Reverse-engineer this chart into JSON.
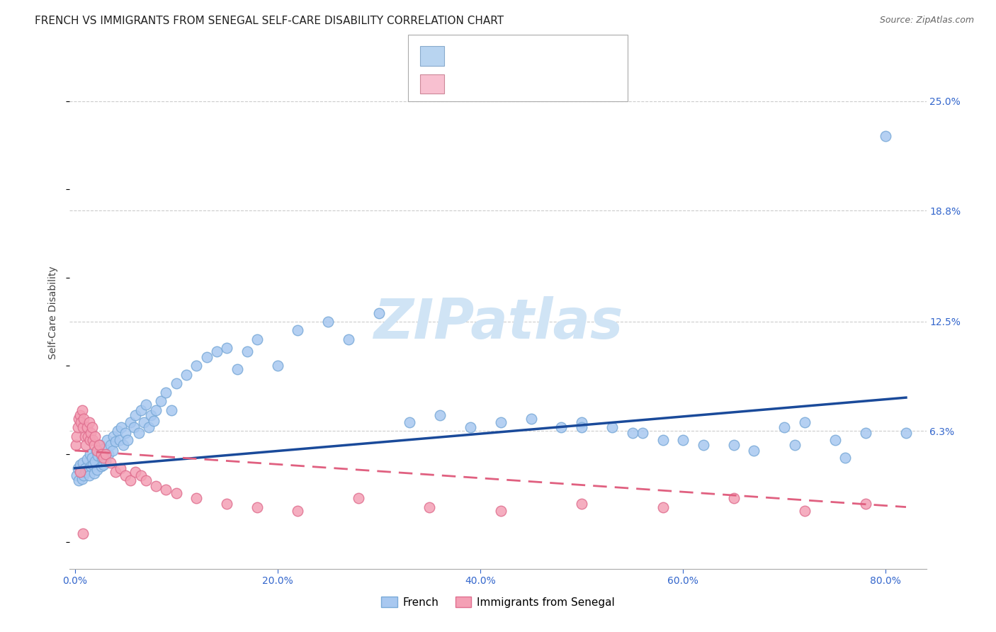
{
  "title": "FRENCH VS IMMIGRANTS FROM SENEGAL SELF-CARE DISABILITY CORRELATION CHART",
  "source": "Source: ZipAtlas.com",
  "ylabel_label": "Self-Care Disability",
  "x_tick_labels": [
    "0.0%",
    "20.0%",
    "40.0%",
    "60.0%",
    "80.0%"
  ],
  "x_tick_vals": [
    0.0,
    0.2,
    0.4,
    0.6,
    0.8
  ],
  "y_tick_labels": [
    "6.3%",
    "12.5%",
    "18.8%",
    "25.0%"
  ],
  "y_tick_vals": [
    0.063,
    0.125,
    0.188,
    0.25
  ],
  "xlim": [
    -0.005,
    0.84
  ],
  "ylim": [
    -0.015,
    0.275
  ],
  "french_color": "#A8C8F0",
  "senegal_color": "#F4A0B5",
  "french_edge": "#7AAAD8",
  "senegal_edge": "#E07090",
  "trendline_french_color": "#1A4A9A",
  "trendline_senegal_color": "#E06080",
  "watermark_color": "#D0E4F5",
  "legend_box_french": "#B8D4F0",
  "legend_box_senegal": "#F8C0D0",
  "background_color": "#FFFFFF",
  "grid_color": "#CCCCCC",
  "title_fontsize": 11,
  "axis_label_fontsize": 10,
  "tick_fontsize": 10,
  "legend_fontsize": 12,
  "french_x": [
    0.002,
    0.003,
    0.004,
    0.005,
    0.006,
    0.007,
    0.008,
    0.009,
    0.01,
    0.011,
    0.012,
    0.013,
    0.014,
    0.015,
    0.016,
    0.017,
    0.018,
    0.019,
    0.02,
    0.021,
    0.022,
    0.023,
    0.025,
    0.026,
    0.027,
    0.028,
    0.029,
    0.03,
    0.032,
    0.033,
    0.035,
    0.037,
    0.038,
    0.04,
    0.042,
    0.044,
    0.046,
    0.048,
    0.05,
    0.052,
    0.055,
    0.058,
    0.06,
    0.063,
    0.065,
    0.068,
    0.07,
    0.073,
    0.075,
    0.078,
    0.08,
    0.085,
    0.09,
    0.095,
    0.1,
    0.11,
    0.12,
    0.13,
    0.14,
    0.15,
    0.16,
    0.17,
    0.18,
    0.2,
    0.22,
    0.25,
    0.27,
    0.3,
    0.33,
    0.36,
    0.39,
    0.42,
    0.45,
    0.48,
    0.5,
    0.53,
    0.56,
    0.6,
    0.65,
    0.7,
    0.72,
    0.75,
    0.78,
    0.8,
    0.5,
    0.55,
    0.58,
    0.62,
    0.67,
    0.71,
    0.76,
    0.82
  ],
  "french_y": [
    0.038,
    0.042,
    0.035,
    0.044,
    0.04,
    0.036,
    0.045,
    0.038,
    0.042,
    0.04,
    0.047,
    0.041,
    0.038,
    0.05,
    0.043,
    0.048,
    0.044,
    0.039,
    0.046,
    0.052,
    0.041,
    0.049,
    0.055,
    0.043,
    0.048,
    0.044,
    0.053,
    0.046,
    0.058,
    0.05,
    0.055,
    0.052,
    0.06,
    0.057,
    0.063,
    0.058,
    0.065,
    0.055,
    0.062,
    0.058,
    0.068,
    0.065,
    0.072,
    0.062,
    0.075,
    0.068,
    0.078,
    0.065,
    0.072,
    0.069,
    0.075,
    0.08,
    0.085,
    0.075,
    0.09,
    0.095,
    0.1,
    0.105,
    0.108,
    0.11,
    0.098,
    0.108,
    0.115,
    0.1,
    0.12,
    0.125,
    0.115,
    0.13,
    0.068,
    0.072,
    0.065,
    0.068,
    0.07,
    0.065,
    0.068,
    0.065,
    0.062,
    0.058,
    0.055,
    0.065,
    0.068,
    0.058,
    0.062,
    0.23,
    0.065,
    0.062,
    0.058,
    0.055,
    0.052,
    0.055,
    0.048,
    0.062
  ],
  "senegal_x": [
    0.001,
    0.002,
    0.003,
    0.004,
    0.005,
    0.006,
    0.007,
    0.008,
    0.009,
    0.01,
    0.011,
    0.012,
    0.013,
    0.014,
    0.015,
    0.016,
    0.017,
    0.018,
    0.019,
    0.02,
    0.022,
    0.024,
    0.026,
    0.028,
    0.03,
    0.035,
    0.04,
    0.045,
    0.05,
    0.055,
    0.06,
    0.065,
    0.07,
    0.08,
    0.09,
    0.1,
    0.12,
    0.15,
    0.18,
    0.22,
    0.28,
    0.35,
    0.42,
    0.5,
    0.58,
    0.65,
    0.72,
    0.78,
    0.005,
    0.008
  ],
  "senegal_y": [
    0.055,
    0.06,
    0.065,
    0.07,
    0.072,
    0.068,
    0.075,
    0.065,
    0.07,
    0.06,
    0.055,
    0.065,
    0.06,
    0.068,
    0.058,
    0.062,
    0.065,
    0.058,
    0.055,
    0.06,
    0.052,
    0.055,
    0.05,
    0.048,
    0.05,
    0.045,
    0.04,
    0.042,
    0.038,
    0.035,
    0.04,
    0.038,
    0.035,
    0.032,
    0.03,
    0.028,
    0.025,
    0.022,
    0.02,
    0.018,
    0.025,
    0.02,
    0.018,
    0.022,
    0.02,
    0.025,
    0.018,
    0.022,
    0.04,
    0.005
  ]
}
